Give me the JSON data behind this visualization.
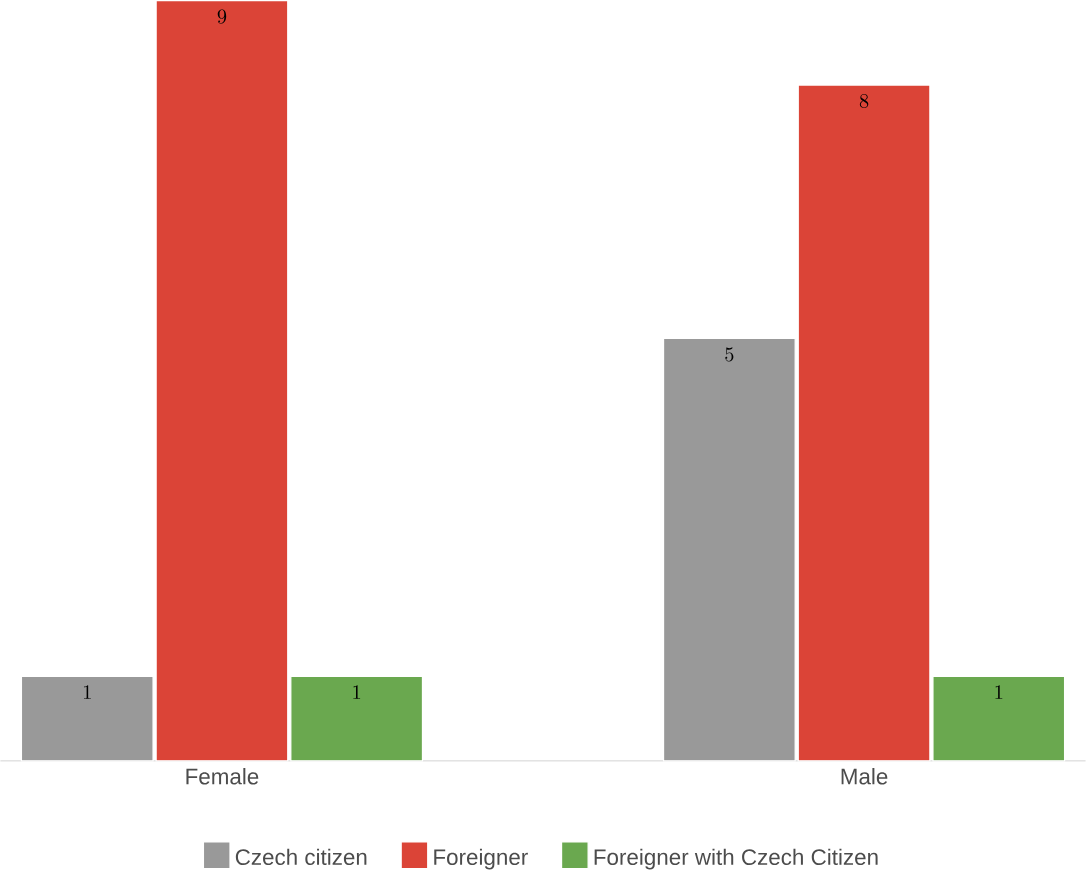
{
  "chart_data": {
    "type": "bar",
    "categories": [
      "Female",
      "Male"
    ],
    "series": [
      {
        "name": "Czech citizen",
        "color": "#999999",
        "values": [
          1,
          5
        ]
      },
      {
        "name": "Foreigner",
        "color": "#db4437",
        "values": [
          9,
          8
        ]
      },
      {
        "name": "Foreigner with Czech Citizen",
        "color": "#6aa84f",
        "values": [
          1,
          1
        ]
      }
    ],
    "data_labels": true,
    "legend": "bottom"
  }
}
